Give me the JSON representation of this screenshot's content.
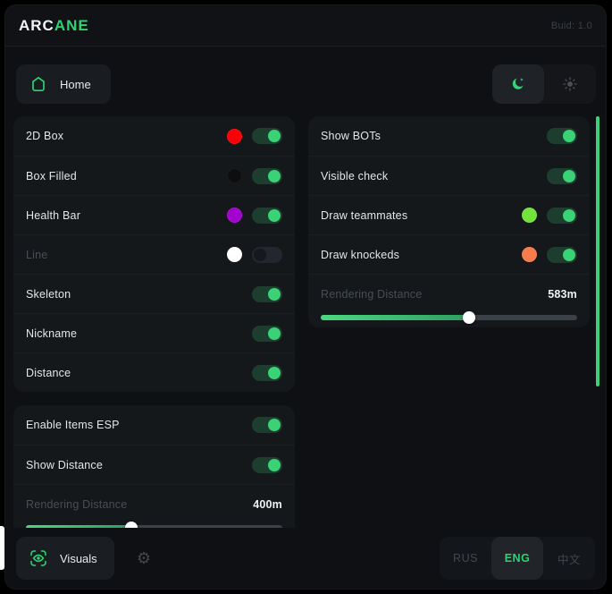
{
  "header": {
    "brand_prefix": "ARC",
    "brand_suffix": "ANE",
    "build": "Buid: 1.0"
  },
  "nav": {
    "home_label": "Home"
  },
  "colors": {
    "accent_green": "#2fd272",
    "toggle_knob_on": "#3bd276",
    "toggle_track_on": "#1d3e2f",
    "scrollbar": "#3ecf78",
    "panel_bg": "#15181b",
    "window_bg": "#0e1013"
  },
  "panels": {
    "esp": {
      "rows": [
        {
          "label": "2D Box",
          "swatch": "#fb0007",
          "toggle": "on"
        },
        {
          "label": "Box Filled",
          "swatch": "#0c0e10",
          "toggle": "on"
        },
        {
          "label": "Health Bar",
          "swatch": "#a303cf",
          "toggle": "on"
        },
        {
          "label": "Line",
          "swatch": "#ffffff",
          "toggle": "off",
          "dim": true
        },
        {
          "label": "Skeleton",
          "toggle": "on"
        },
        {
          "label": "Nickname",
          "toggle": "on"
        },
        {
          "label": "Distance",
          "toggle": "on"
        }
      ]
    },
    "items": {
      "rows": [
        {
          "label": "Enable Items ESP",
          "toggle": "on"
        },
        {
          "label": "Show Distance",
          "toggle": "on"
        },
        {
          "label": "Rendering Distance",
          "dim": true,
          "value": "400m"
        },
        {
          "slider": {
            "percent": 41
          }
        }
      ]
    },
    "bots": {
      "rows": [
        {
          "label": "Show BOTs",
          "toggle": "on"
        },
        {
          "label": "Visible check",
          "toggle": "on"
        },
        {
          "label": "Draw teammates",
          "swatch": "#74e23a",
          "toggle": "on"
        },
        {
          "label": "Draw knockeds",
          "swatch": "#f57c4b",
          "toggle": "on"
        },
        {
          "label": "Rendering Distance",
          "dim": true,
          "value": "583m"
        },
        {
          "slider": {
            "percent": 58
          }
        }
      ]
    }
  },
  "footer": {
    "visuals_label": "Visuals",
    "languages": [
      {
        "label": "RUS",
        "active": false
      },
      {
        "label": "ENG",
        "active": true
      },
      {
        "label": "中文",
        "active": false
      }
    ]
  }
}
